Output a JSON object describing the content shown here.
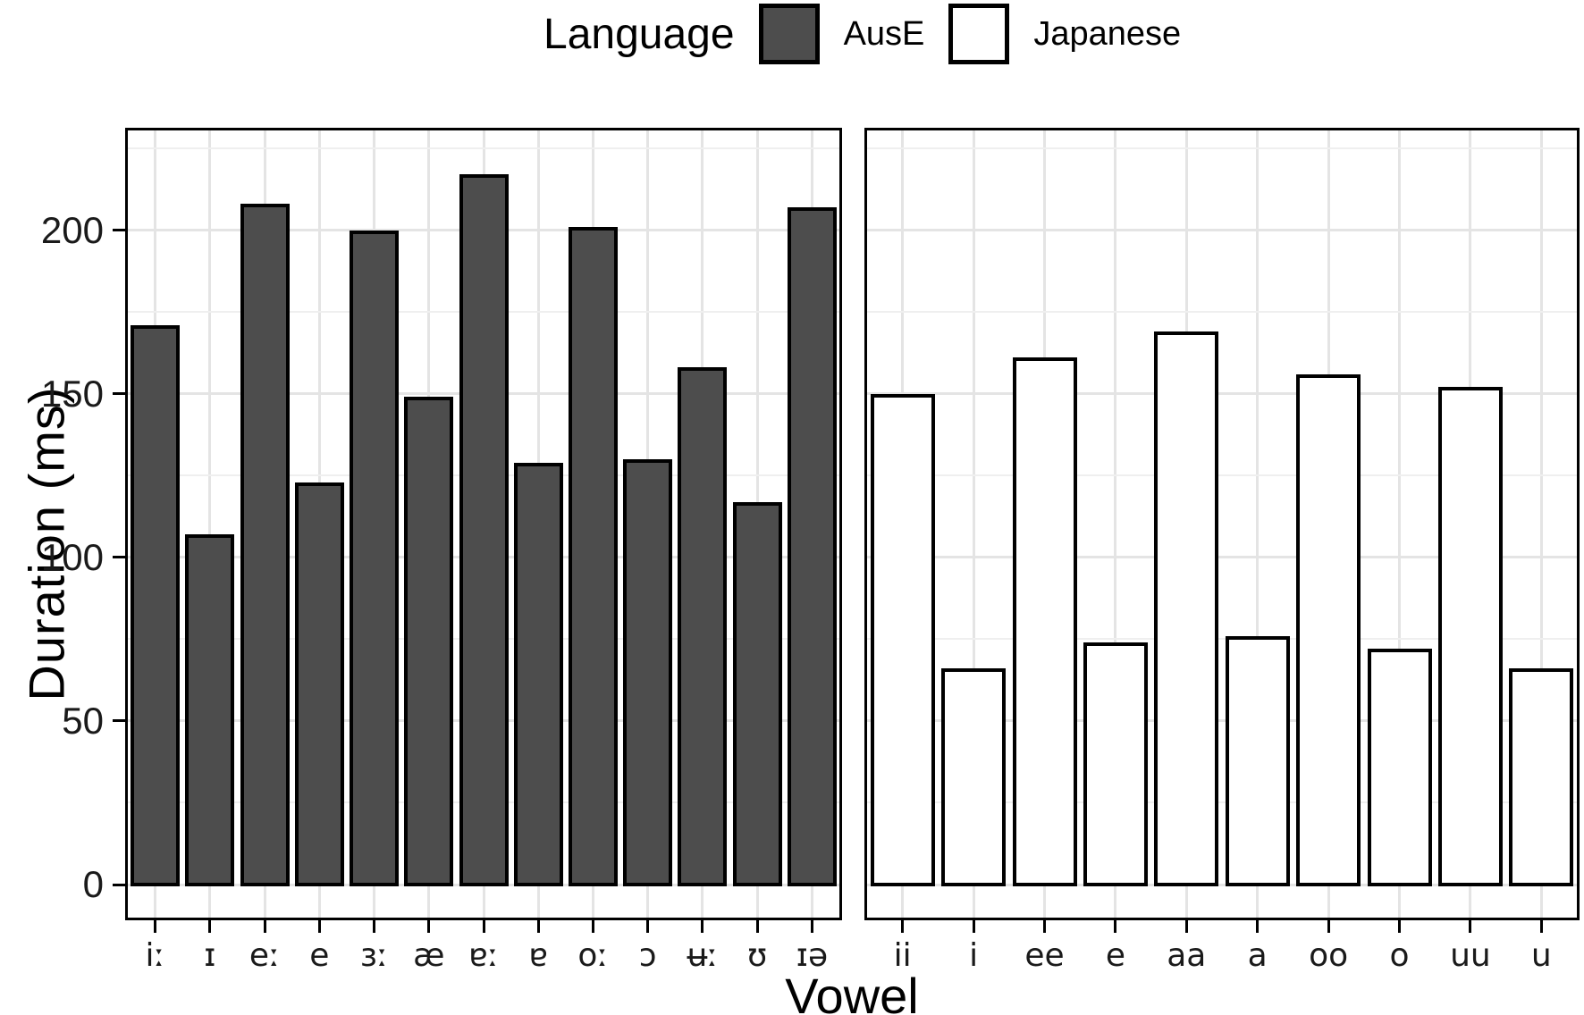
{
  "figure": {
    "background": "#ffffff"
  },
  "legend": {
    "title": "Language",
    "items": [
      {
        "label": "AusE",
        "fill": "#4d4d4d",
        "border": "#000000"
      },
      {
        "label": "Japanese",
        "fill": "#ffffff",
        "border": "#000000"
      }
    ]
  },
  "axes": {
    "y_title": "Duration (ms)",
    "x_title": "Vowel"
  },
  "chart_data": {
    "type": "bar",
    "title": "",
    "xlabel": "Vowel",
    "ylabel": "Duration (ms)",
    "ylim": [
      0,
      230
    ],
    "y_major_ticks": [
      0,
      50,
      100,
      150,
      200
    ],
    "y_minor_gridlines": [
      25,
      75,
      125,
      175,
      225
    ],
    "grid": true,
    "legend_position": "top-center",
    "bar_outline_color": "#000000",
    "facets": [
      {
        "name": "AusE",
        "fill": "#4d4d4d",
        "categories": [
          "iː",
          "ɪ",
          "eː",
          "e",
          "ɜː",
          "æ",
          "ɐː",
          "ɐ",
          "oː",
          "ɔ",
          "ʉː",
          "ʊ",
          "ɪə"
        ],
        "values": [
          171,
          107,
          208,
          123,
          200,
          149,
          217,
          129,
          201,
          130,
          158,
          117,
          207
        ]
      },
      {
        "name": "Japanese",
        "fill": "#ffffff",
        "categories": [
          "ii",
          "i",
          "ee",
          "e",
          "aa",
          "a",
          "oo",
          "o",
          "uu",
          "u"
        ],
        "values": [
          150,
          66,
          161,
          74,
          169,
          76,
          156,
          72,
          152,
          66
        ]
      }
    ]
  }
}
